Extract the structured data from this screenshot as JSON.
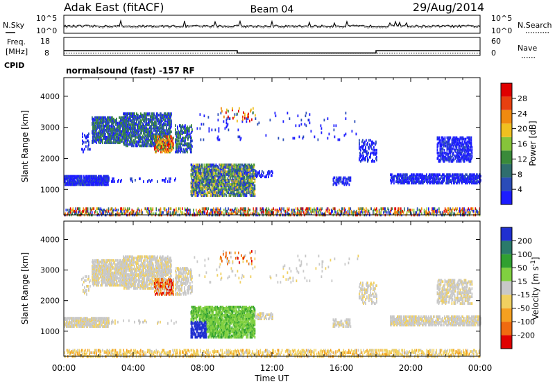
{
  "header": {
    "station": "Adak East (fitACF)",
    "beam": "Beam 04",
    "date": "29/Aug/2014"
  },
  "side_labels": {
    "nsky": "N.Sky",
    "freq_line1": "Freq.",
    "freq_line2": "[MHz]",
    "cpid": "CPID",
    "nsearch": "N.Search",
    "nave": "Nave"
  },
  "cpid_text": "normalsound (fast) -157 RF",
  "colors": {
    "power": [
      "#1c1cff",
      "#2a4cb8",
      "#2f6e6e",
      "#3a8a3a",
      "#86c43a",
      "#f0c020",
      "#f08a10",
      "#e84010",
      "#e00000"
    ],
    "velocity": [
      "#e00000",
      "#f06a10",
      "#f5a020",
      "#f0d060",
      "#c8c8c8",
      "#80d040",
      "#30a030",
      "#2a7a6a",
      "#2030d0"
    ]
  },
  "chart_data": [
    {
      "type": "line",
      "panel": "noise",
      "left_axis": {
        "label": "N.Sky",
        "ticks": [
          "10^5",
          "10^0"
        ]
      },
      "right_axis": {
        "label": "N.Search",
        "ticks": [
          "10^5",
          "10^0"
        ]
      },
      "x_range": [
        "00:00",
        "24:00"
      ]
    },
    {
      "type": "line",
      "panel": "frequency",
      "left_axis": {
        "label": "Freq. [MHz]",
        "ticks": [
          18,
          8
        ]
      },
      "right_axis": {
        "label": "Nave",
        "ticks": [
          60,
          0
        ]
      },
      "series": [
        {
          "name": "Freq.",
          "x": [
            0,
            10,
            10,
            18,
            18,
            24
          ],
          "y": [
            11.4,
            11.4,
            9.8,
            9.8,
            11.4,
            11.4
          ]
        },
        {
          "name": "Nave",
          "x": [
            0,
            24
          ],
          "y": [
            10,
            10
          ]
        }
      ]
    },
    {
      "type": "heatmap",
      "panel": "power",
      "xlabel": "Time UT",
      "ylabel": "Slant Range [km]",
      "ylim": [
        180,
        4600
      ],
      "yticks": [
        1000,
        2000,
        3000,
        4000
      ],
      "colorbar": {
        "label": "Power [dB]",
        "ticks": [
          4,
          8,
          12,
          16,
          20,
          24,
          28
        ],
        "range": [
          0,
          32
        ]
      }
    },
    {
      "type": "heatmap",
      "panel": "velocity",
      "xlabel": "Time UT",
      "ylabel": "Slant Range [km]",
      "ylim": [
        180,
        4600
      ],
      "yticks": [
        1000,
        2000,
        3000,
        4000
      ],
      "colorbar": {
        "label": "Velocity [m s-1]",
        "ticks": [
          -200,
          -100,
          -50,
          -15,
          15,
          50,
          100,
          200
        ]
      }
    }
  ],
  "x_axis": {
    "label": "Time UT",
    "tick_labels": [
      "00:00",
      "04:00",
      "08:00",
      "12:00",
      "16:00",
      "20:00",
      "00:00"
    ],
    "tick_hours": [
      0,
      4,
      8,
      12,
      16,
      20,
      24
    ]
  }
}
